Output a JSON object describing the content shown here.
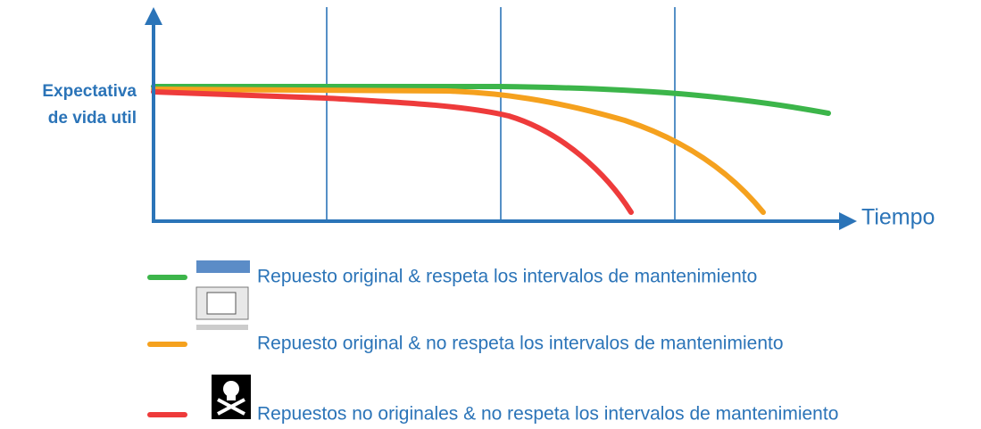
{
  "y_axis_label": [
    "Expectativa",
    "de vida util"
  ],
  "x_axis_label": "Tiempo",
  "legend": [
    {
      "label": "Repuesto original & respeta los intervalos de mantenimiento",
      "color": "#3cb54a"
    },
    {
      "label": "Repuesto original & no respeta los intervalos de mantenimiento",
      "color": "#f5a11e"
    },
    {
      "label": "Repuestos no originales & no respeta los intervalos de mantenimiento",
      "color": "#ee3b3b"
    }
  ]
}
